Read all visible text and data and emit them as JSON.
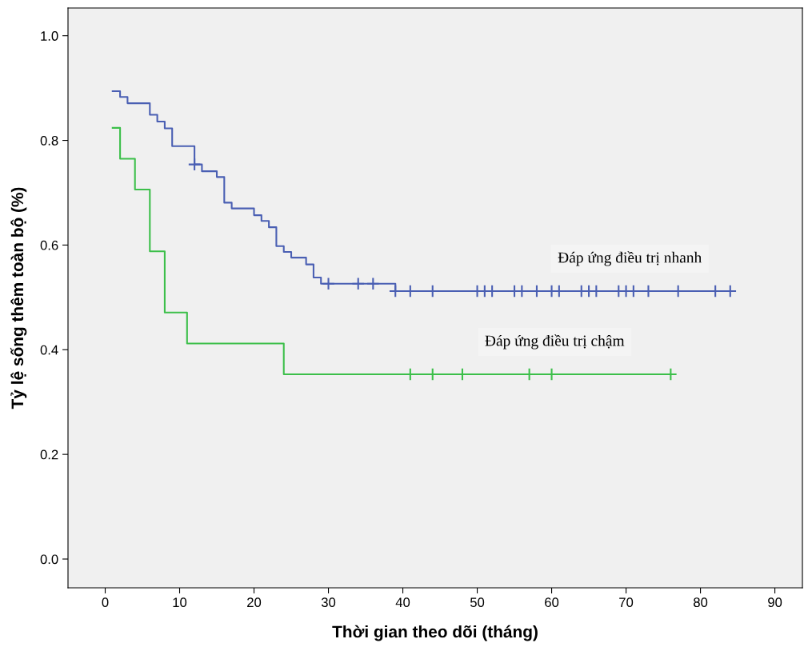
{
  "chart_data": {
    "type": "step",
    "xlabel": "Thời gian theo dõi (tháng)",
    "ylabel": "Tỷ lệ sống thêm toàn bộ (%)",
    "xlim": [
      -5,
      93.7
    ],
    "ylim": [
      -0.055,
      1.053
    ],
    "xticks": [
      0,
      10,
      20,
      30,
      40,
      50,
      60,
      70,
      80,
      90
    ],
    "yticks": [
      {
        "value": 0,
        "label": "0.0"
      },
      {
        "value": 0.2,
        "label": "0.2"
      },
      {
        "value": 0.4,
        "label": "0.4"
      },
      {
        "value": 0.6,
        "label": "0.6"
      },
      {
        "value": 0.8,
        "label": "0.8"
      },
      {
        "value": 1,
        "label": "1.0"
      }
    ],
    "grid": false,
    "legend": false,
    "series": [
      {
        "name": "Đáp ứng điều trị nhanh",
        "color": "#4a5fb3",
        "x": [
          1,
          2,
          3,
          6,
          7,
          8,
          9,
          12,
          13,
          15,
          16,
          17,
          20,
          21,
          22,
          23,
          24,
          25,
          27,
          28,
          29,
          39,
          84
        ],
        "values": [
          0.894,
          0.883,
          0.871,
          0.849,
          0.836,
          0.823,
          0.789,
          0.754,
          0.741,
          0.73,
          0.681,
          0.67,
          0.657,
          0.646,
          0.634,
          0.598,
          0.587,
          0.576,
          0.563,
          0.538,
          0.526,
          0.512,
          0.512
        ]
      },
      {
        "name": "Đáp ứng điều trị chậm",
        "color": "#3cbf4a",
        "x": [
          1,
          2,
          4,
          6,
          8,
          11,
          24,
          76
        ],
        "values": [
          0.824,
          0.765,
          0.706,
          0.588,
          0.471,
          0.412,
          0.353,
          0.353
        ]
      },
      {
        "type": "scatter",
        "marker": "cross",
        "color": "#4a5fb3",
        "x": [
          12,
          30,
          34,
          36,
          39,
          41,
          44,
          50,
          51,
          52,
          55,
          56,
          58,
          60,
          61,
          64,
          65,
          66,
          69,
          70,
          71,
          73,
          77,
          82,
          84
        ],
        "values": [
          0.754,
          0.526,
          0.526,
          0.526,
          0.512,
          0.512,
          0.512,
          0.512,
          0.512,
          0.512,
          0.512,
          0.512,
          0.512,
          0.512,
          0.512,
          0.512,
          0.512,
          0.512,
          0.512,
          0.512,
          0.512,
          0.512,
          0.512,
          0.512,
          0.512
        ]
      },
      {
        "type": "scatter",
        "marker": "cross",
        "color": "#3cbf4a",
        "x": [
          41,
          44,
          48,
          57,
          60,
          76
        ],
        "values": [
          0.353,
          0.353,
          0.353,
          0.353,
          0.353,
          0.353
        ]
      }
    ]
  }
}
